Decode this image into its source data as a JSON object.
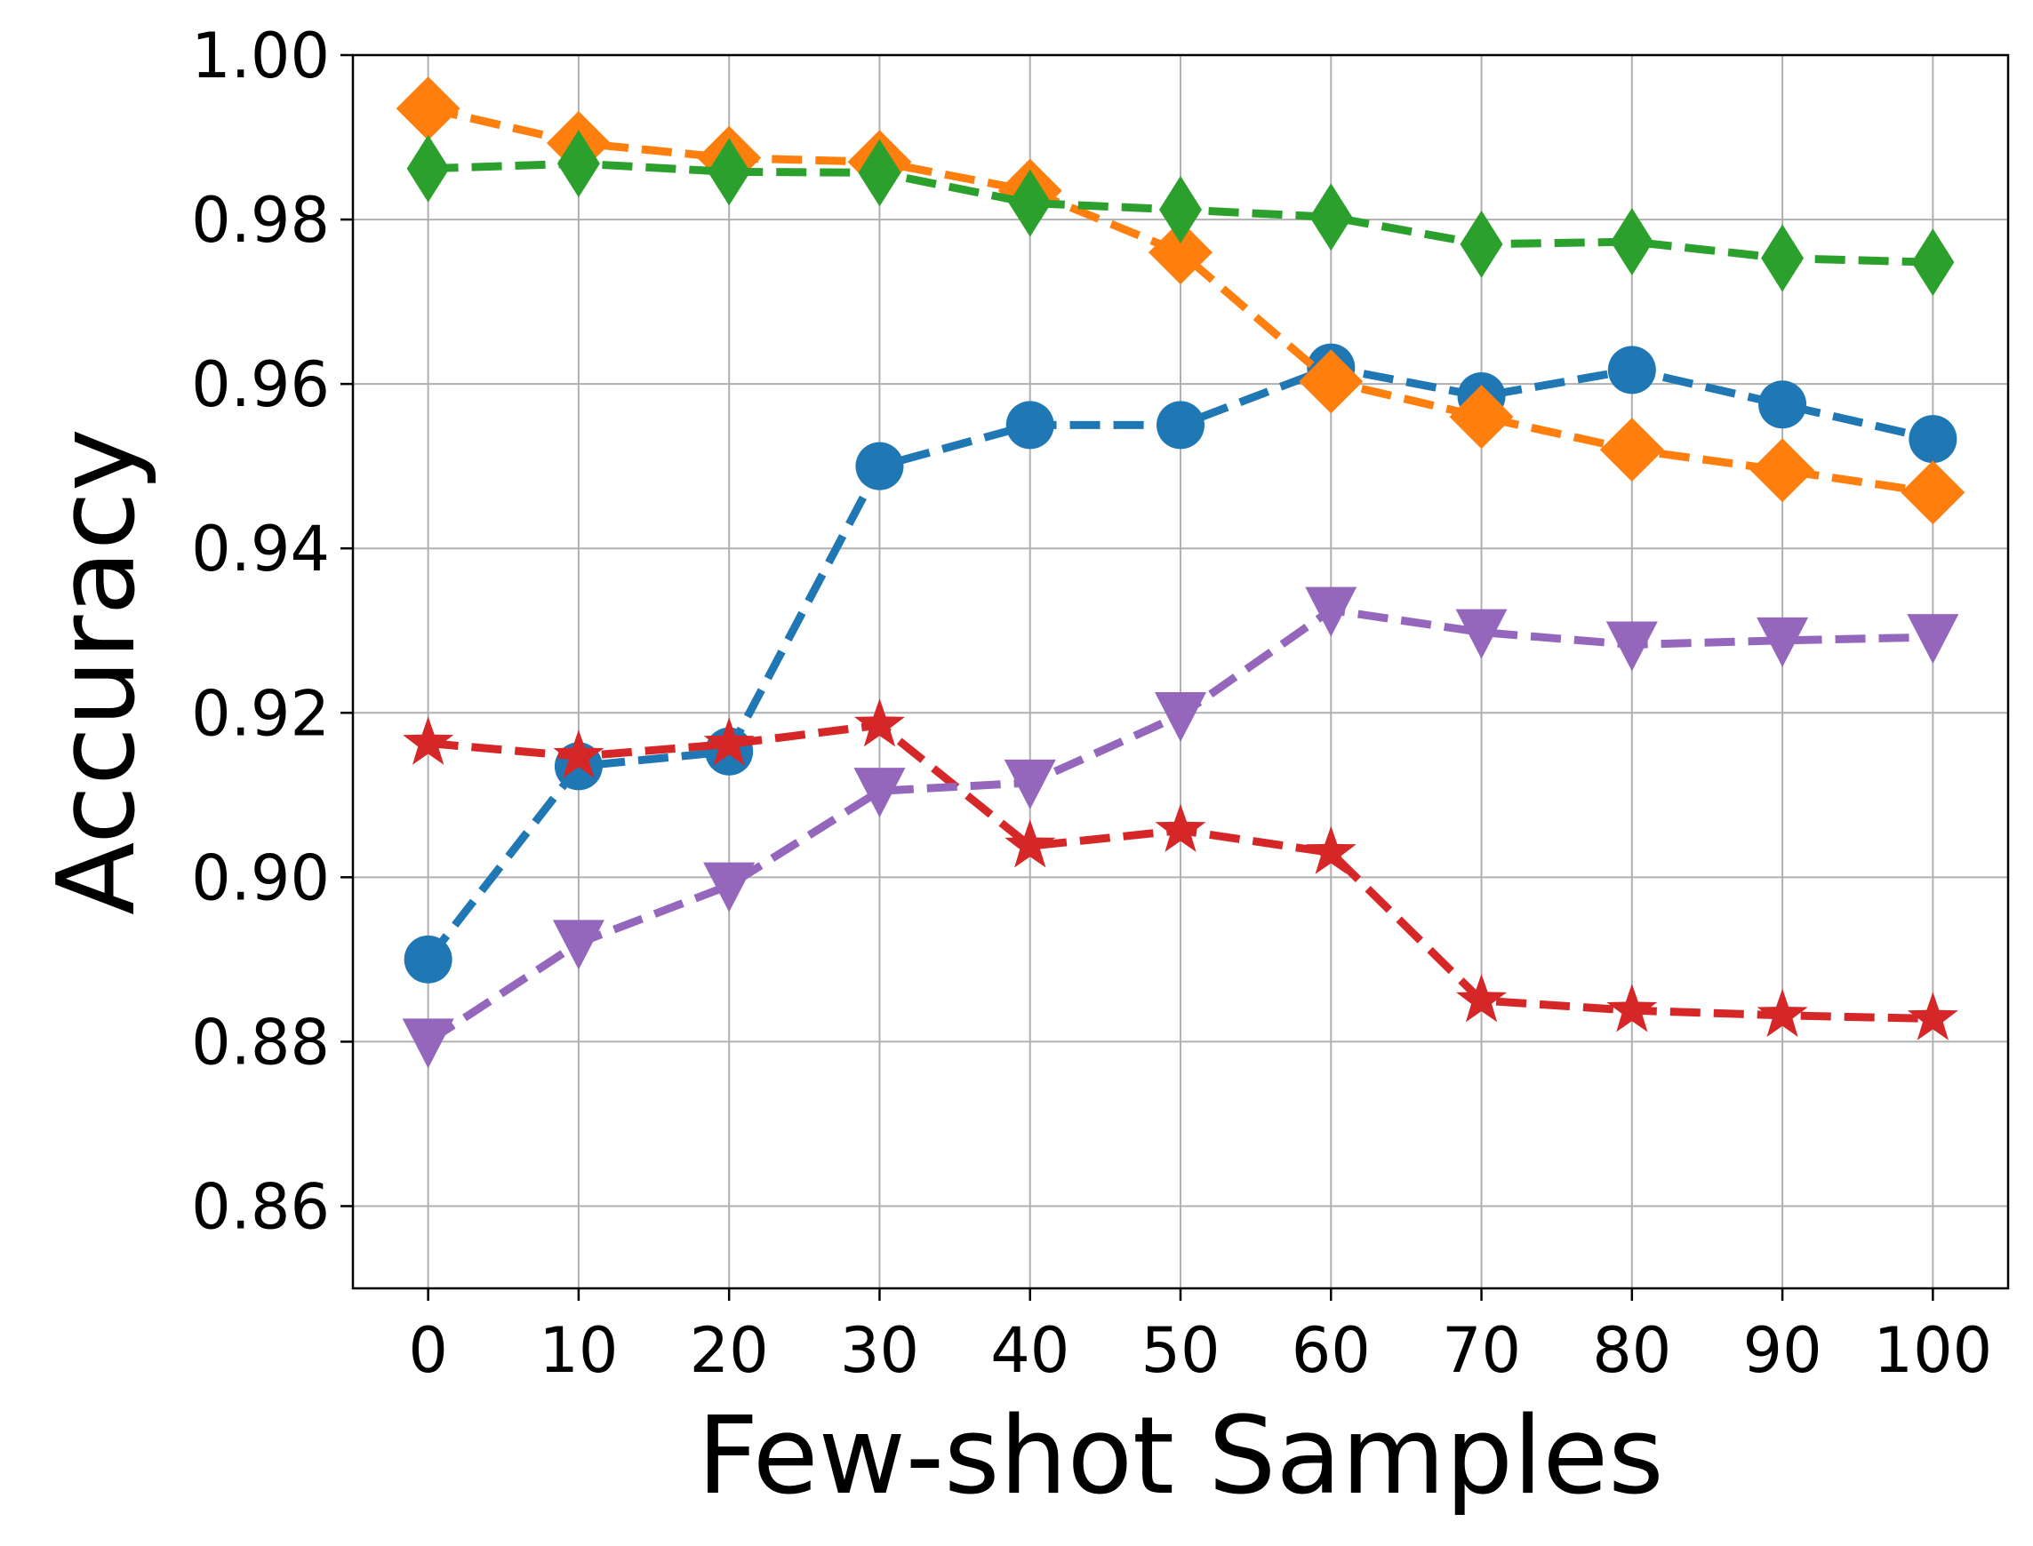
{
  "chart_data": {
    "type": "line",
    "title": "",
    "xlabel": "Few-shot Samples",
    "ylabel": "Accuracy",
    "x": [
      0,
      10,
      20,
      30,
      40,
      50,
      60,
      70,
      80,
      90,
      100
    ],
    "x_tick_labels": [
      "0",
      "10",
      "20",
      "30",
      "40",
      "50",
      "60",
      "70",
      "80",
      "90",
      "100"
    ],
    "y_ticks": [
      0.86,
      0.88,
      0.9,
      0.92,
      0.94,
      0.96,
      0.98,
      1.0
    ],
    "y_tick_labels": [
      "0.86",
      "0.88",
      "0.90",
      "0.92",
      "0.94",
      "0.96",
      "0.98",
      "1.00"
    ],
    "xlim": [
      -5,
      105
    ],
    "ylim": [
      0.85,
      1.0
    ],
    "grid": true,
    "legend": "none",
    "series": [
      {
        "name": "series-blue",
        "color": "#1f77b4",
        "marker": "circle",
        "values": [
          0.89,
          0.9135,
          0.9153,
          0.95,
          0.955,
          0.955,
          0.962,
          0.9585,
          0.9617,
          0.9575,
          0.9533
        ]
      },
      {
        "name": "series-orange",
        "color": "#ff7f0e",
        "marker": "diamond",
        "values": [
          0.9935,
          0.9893,
          0.9875,
          0.987,
          0.9835,
          0.976,
          0.9603,
          0.956,
          0.952,
          0.9495,
          0.9468
        ]
      },
      {
        "name": "series-green",
        "color": "#2ca02c",
        "marker": "thin-diamond",
        "values": [
          0.9862,
          0.9868,
          0.9858,
          0.9857,
          0.982,
          0.9812,
          0.9803,
          0.977,
          0.9773,
          0.9753,
          0.9748
        ]
      },
      {
        "name": "series-red",
        "color": "#d62728",
        "marker": "star",
        "values": [
          0.9163,
          0.9147,
          0.9162,
          0.9185,
          0.9038,
          0.9057,
          0.903,
          0.885,
          0.8838,
          0.8832,
          0.8828
        ]
      },
      {
        "name": "series-purple",
        "color": "#9467bd",
        "marker": "triangle-down",
        "values": [
          0.88,
          0.892,
          0.899,
          0.9105,
          0.9115,
          0.9197,
          0.9325,
          0.9298,
          0.9283,
          0.9288,
          0.9292
        ]
      }
    ]
  }
}
